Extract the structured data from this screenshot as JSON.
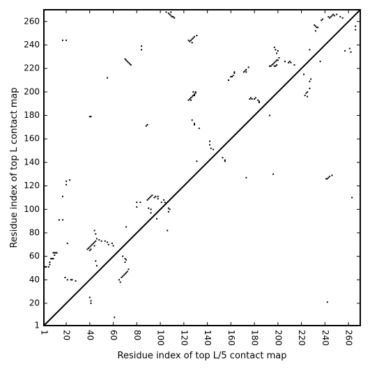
{
  "chart_data": {
    "type": "scatter",
    "title": "",
    "xlabel": "Residue index of top L/5 contact map",
    "ylabel": "Residue index of top L contact map",
    "xlim": [
      1,
      270
    ],
    "ylim": [
      1,
      270
    ],
    "xticks": [
      "1",
      "20",
      "40",
      "60",
      "80",
      "100",
      "120",
      "140",
      "160",
      "180",
      "200",
      "220",
      "240",
      "260"
    ],
    "yticks": [
      "1",
      "20",
      "40",
      "60",
      "80",
      "100",
      "120",
      "140",
      "160",
      "180",
      "200",
      "220",
      "240",
      "260"
    ],
    "xtick_values": [
      1,
      20,
      40,
      60,
      80,
      100,
      120,
      140,
      160,
      180,
      200,
      220,
      240,
      260
    ],
    "ytick_values": [
      1,
      20,
      40,
      60,
      80,
      100,
      120,
      140,
      160,
      180,
      200,
      220,
      240,
      260
    ],
    "tick_label_rotation": "x labels rotated 90° clockwise",
    "grid": false,
    "diagonal_line": true,
    "point_color": "#000000",
    "series": [
      {
        "points": [
          [
            1,
            51
          ],
          [
            2,
            51
          ],
          [
            3,
            51
          ],
          [
            5,
            51
          ],
          [
            6,
            53
          ],
          [
            6,
            55
          ],
          [
            7,
            58
          ],
          [
            8,
            58
          ],
          [
            9,
            58
          ],
          [
            9,
            63
          ],
          [
            10,
            63
          ],
          [
            11,
            63
          ],
          [
            12,
            63
          ],
          [
            10,
            61
          ],
          [
            14,
            91
          ],
          [
            17,
            91
          ],
          [
            17,
            111
          ],
          [
            17,
            244
          ],
          [
            20,
            244
          ],
          [
            20,
            121
          ],
          [
            20,
            124
          ],
          [
            19,
            42
          ],
          [
            21,
            40
          ],
          [
            21,
            71
          ],
          [
            23,
            125
          ],
          [
            24,
            40
          ],
          [
            25,
            40
          ],
          [
            28,
            39
          ],
          [
            38,
            66
          ],
          [
            39,
            67
          ],
          [
            40,
            68
          ],
          [
            40,
            65
          ],
          [
            41,
            69
          ],
          [
            41,
            66
          ],
          [
            42,
            70
          ],
          [
            43,
            71
          ],
          [
            44,
            72
          ],
          [
            44,
            69
          ],
          [
            45,
            73
          ],
          [
            45,
            56
          ],
          [
            46,
            52
          ],
          [
            44,
            82
          ],
          [
            45,
            79
          ],
          [
            46,
            75
          ],
          [
            48,
            74
          ],
          [
            40,
            179
          ],
          [
            41,
            179
          ],
          [
            40,
            25
          ],
          [
            41,
            22
          ],
          [
            41,
            20
          ],
          [
            50,
            73
          ],
          [
            53,
            73
          ],
          [
            55,
            72
          ],
          [
            56,
            70
          ],
          [
            59,
            71
          ],
          [
            60,
            69
          ],
          [
            55,
            212
          ],
          [
            61,
            8
          ],
          [
            65,
            40
          ],
          [
            66,
            38
          ],
          [
            67,
            42
          ],
          [
            68,
            43
          ],
          [
            69,
            44
          ],
          [
            70,
            45
          ],
          [
            71,
            46
          ],
          [
            72,
            47
          ],
          [
            73,
            49
          ],
          [
            68,
            60
          ],
          [
            70,
            58
          ],
          [
            70,
            55
          ],
          [
            71,
            57
          ],
          [
            70,
            228
          ],
          [
            71,
            227
          ],
          [
            72,
            226
          ],
          [
            73,
            225
          ],
          [
            74,
            224
          ],
          [
            75,
            223
          ],
          [
            71,
            85
          ],
          [
            80,
            102
          ],
          [
            80,
            106
          ],
          [
            83,
            106
          ],
          [
            84,
            236
          ],
          [
            84,
            239
          ],
          [
            88,
            171
          ],
          [
            89,
            172
          ],
          [
            89,
            108
          ],
          [
            90,
            109
          ],
          [
            91,
            110
          ],
          [
            92,
            111
          ],
          [
            93,
            112
          ],
          [
            95,
            110
          ],
          [
            96,
            111
          ],
          [
            98,
            109
          ],
          [
            98,
            111
          ],
          [
            90,
            101
          ],
          [
            92,
            100
          ],
          [
            92,
            97
          ],
          [
            97,
            92
          ],
          [
            101,
            106
          ],
          [
            103,
            108
          ],
          [
            104,
            106
          ],
          [
            106,
            82
          ],
          [
            107,
            101
          ],
          [
            107,
            98
          ],
          [
            108,
            100
          ],
          [
            105,
            268
          ],
          [
            107,
            267
          ],
          [
            108,
            266
          ],
          [
            109,
            265
          ],
          [
            110,
            264
          ],
          [
            111,
            264
          ],
          [
            112,
            263
          ],
          [
            109,
            268
          ],
          [
            101,
            270
          ],
          [
            124,
            193
          ],
          [
            125,
            194
          ],
          [
            126,
            195
          ],
          [
            127,
            196
          ],
          [
            128,
            197
          ],
          [
            129,
            198
          ],
          [
            130,
            199
          ],
          [
            128,
            200
          ],
          [
            130,
            200
          ],
          [
            126,
            193
          ],
          [
            129,
            197
          ],
          [
            124,
            244
          ],
          [
            125,
            243
          ],
          [
            126,
            244
          ],
          [
            127,
            245
          ],
          [
            128,
            246
          ],
          [
            129,
            247
          ],
          [
            131,
            248
          ],
          [
            127,
            242
          ],
          [
            127,
            176
          ],
          [
            129,
            173
          ],
          [
            129,
            172
          ],
          [
            133,
            169
          ],
          [
            131,
            141
          ],
          [
            142,
            158
          ],
          [
            142,
            155
          ],
          [
            143,
            152
          ],
          [
            145,
            151
          ],
          [
            153,
            144
          ],
          [
            155,
            141
          ],
          [
            155,
            142
          ],
          [
            158,
            210
          ],
          [
            160,
            213
          ],
          [
            161,
            213
          ],
          [
            162,
            214
          ],
          [
            163,
            216
          ],
          [
            163,
            217
          ],
          [
            171,
            217
          ],
          [
            172,
            218
          ],
          [
            173,
            219
          ],
          [
            175,
            221
          ],
          [
            173,
            217
          ],
          [
            173,
            127
          ],
          [
            176,
            194
          ],
          [
            177,
            195
          ],
          [
            178,
            194
          ],
          [
            180,
            194
          ],
          [
            181,
            195
          ],
          [
            183,
            193
          ],
          [
            184,
            191
          ],
          [
            184,
            192
          ],
          [
            193,
            222
          ],
          [
            194,
            222
          ],
          [
            195,
            223
          ],
          [
            196,
            224
          ],
          [
            197,
            225
          ],
          [
            198,
            226
          ],
          [
            199,
            227
          ],
          [
            200,
            227
          ],
          [
            201,
            229
          ],
          [
            198,
            222
          ],
          [
            199,
            223
          ],
          [
            197,
            222
          ],
          [
            197,
            238
          ],
          [
            198,
            236
          ],
          [
            199,
            233
          ],
          [
            200,
            235
          ],
          [
            193,
            180
          ],
          [
            196,
            130
          ],
          [
            206,
            226
          ],
          [
            209,
            225
          ],
          [
            210,
            226
          ],
          [
            211,
            225
          ],
          [
            214,
            223
          ],
          [
            222,
            215
          ],
          [
            223,
            197
          ],
          [
            225,
            196
          ],
          [
            224,
            199
          ],
          [
            225,
            200
          ],
          [
            228,
            211
          ],
          [
            227,
            209
          ],
          [
            227,
            236
          ],
          [
            227,
            203
          ],
          [
            231,
            257
          ],
          [
            232,
            256
          ],
          [
            233,
            255
          ],
          [
            234,
            255
          ],
          [
            232,
            252
          ],
          [
            236,
            226
          ],
          [
            237,
            261
          ],
          [
            238,
            262
          ],
          [
            243,
            264
          ],
          [
            244,
            263
          ],
          [
            245,
            264
          ],
          [
            246,
            265
          ],
          [
            247,
            266
          ],
          [
            248,
            265
          ],
          [
            250,
            266
          ],
          [
            253,
            264
          ],
          [
            255,
            263
          ],
          [
            257,
            235
          ],
          [
            261,
            237
          ],
          [
            262,
            234
          ],
          [
            266,
            253
          ],
          [
            266,
            256
          ],
          [
            263,
            110
          ],
          [
            241,
            126
          ],
          [
            242,
            126
          ],
          [
            243,
            127
          ],
          [
            244,
            128
          ],
          [
            246,
            129
          ],
          [
            242,
            21
          ]
        ]
      }
    ]
  }
}
